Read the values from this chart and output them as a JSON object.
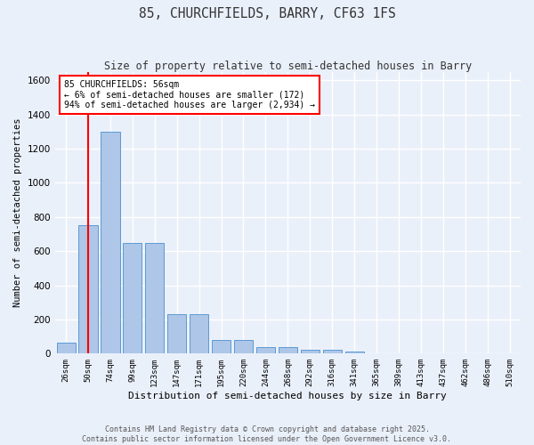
{
  "title": "85, CHURCHFIELDS, BARRY, CF63 1FS",
  "subtitle": "Size of property relative to semi-detached houses in Barry",
  "xlabel": "Distribution of semi-detached houses by size in Barry",
  "ylabel": "Number of semi-detached properties",
  "bins": [
    "26sqm",
    "50sqm",
    "74sqm",
    "99sqm",
    "123sqm",
    "147sqm",
    "171sqm",
    "195sqm",
    "220sqm",
    "244sqm",
    "268sqm",
    "292sqm",
    "316sqm",
    "341sqm",
    "365sqm",
    "389sqm",
    "413sqm",
    "437sqm",
    "462sqm",
    "486sqm",
    "510sqm"
  ],
  "values": [
    65,
    750,
    1300,
    650,
    650,
    230,
    230,
    80,
    80,
    40,
    40,
    20,
    20,
    10,
    0,
    0,
    0,
    0,
    0,
    0,
    0
  ],
  "bar_color": "#aec6e8",
  "bar_edgecolor": "#5b9bd5",
  "annotation_text": "85 CHURCHFIELDS: 56sqm\n← 6% of semi-detached houses are smaller (172)\n94% of semi-detached houses are larger (2,934) →",
  "annotation_box_color": "white",
  "annotation_box_edgecolor": "red",
  "vline_color": "red",
  "ylim": [
    0,
    1650
  ],
  "background_color": "#eaf0fa",
  "grid_color": "white",
  "footer_line1": "Contains HM Land Registry data © Crown copyright and database right 2025.",
  "footer_line2": "Contains public sector information licensed under the Open Government Licence v3.0."
}
